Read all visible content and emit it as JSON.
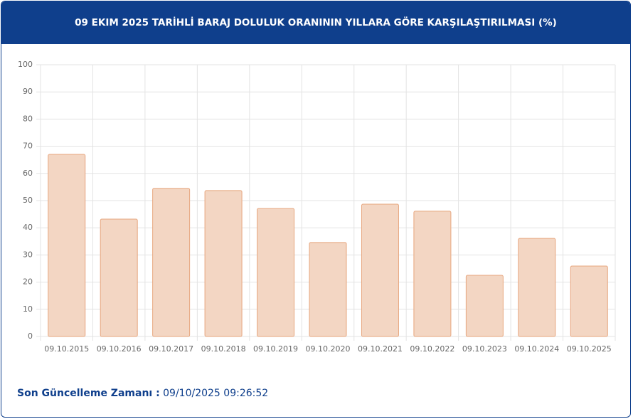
{
  "chart_data": {
    "type": "bar",
    "title": "09 EKIM 2025 TARİHLİ BARAJ DOLULUK ORANININ YILLARA GÖRE KARŞILAŞTIRILMASI (%)",
    "categories": [
      "09.10.2015",
      "09.10.2016",
      "09.10.2017",
      "09.10.2018",
      "09.10.2019",
      "09.10.2020",
      "09.10.2021",
      "09.10.2022",
      "09.10.2023",
      "09.10.2024",
      "09.10.2025"
    ],
    "values": [
      67.0,
      43.2,
      54.5,
      53.7,
      47.1,
      34.6,
      48.7,
      46.1,
      22.5,
      36.1,
      25.9
    ],
    "color": "#f3d6c3",
    "border_color": "#e7a67e",
    "ylim": [
      0,
      100
    ],
    "yticks": [
      0,
      10,
      20,
      30,
      40,
      50,
      60,
      70,
      80,
      90,
      100
    ],
    "grid": true
  },
  "footer": {
    "label": "Son Güncelleme Zamanı :",
    "value": "09/10/2025 09:26:52"
  }
}
